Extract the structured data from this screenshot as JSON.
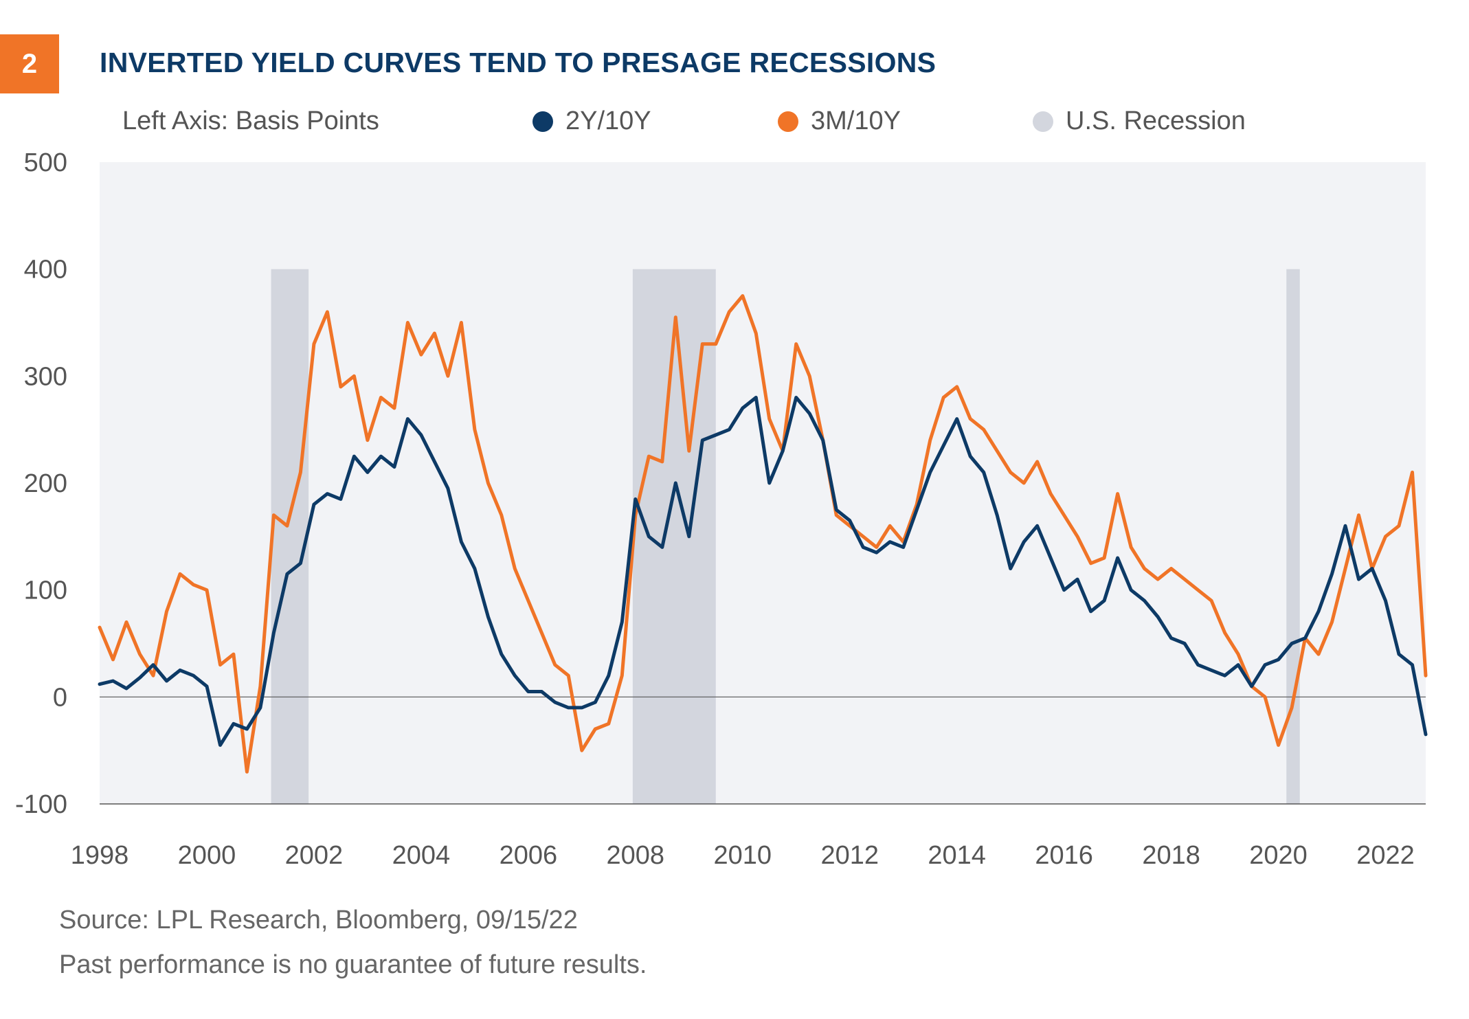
{
  "figure": {
    "number": "2",
    "title": "INVERTED YIELD CURVES TEND TO PRESAGE RECESSIONS",
    "axis_note": "Left Axis: Basis Points",
    "source": "Source: LPL Research, Bloomberg,  09/15/22",
    "disclaimer": "Past performance is no guarantee of future results."
  },
  "colors": {
    "accent": "#f07427",
    "navy": "#0d3a66",
    "orange": "#f07427",
    "recession": "#d3d6de",
    "plot_bg": "#f2f3f6",
    "recession_dot": "#d3d6de"
  },
  "chart_data": {
    "type": "line",
    "ylabel": "Left Axis: Basis Points",
    "ylim": [
      -100,
      500
    ],
    "xlim": [
      1998.0,
      2022.75
    ],
    "y_ticks": [
      500,
      400,
      300,
      200,
      100,
      0,
      -100
    ],
    "y_tick_labels": [
      "500",
      "400",
      "300",
      "200",
      "100",
      "0",
      "-100"
    ],
    "x_ticks": [
      1998,
      2000,
      2002,
      2004,
      2006,
      2008,
      2010,
      2012,
      2014,
      2016,
      2018,
      2020,
      2022
    ],
    "x_tick_labels": [
      "1998",
      "2000",
      "2002",
      "2004",
      "2006",
      "2008",
      "2010",
      "2012",
      "2014",
      "2016",
      "2018",
      "2020",
      "2022"
    ],
    "grid": false,
    "legend_position": "top",
    "legend": [
      {
        "label": "2Y/10Y",
        "color": "#0d3a66"
      },
      {
        "label": "3M/10Y",
        "color": "#f07427"
      },
      {
        "label": "U.S. Recession",
        "color": "#d3d6de"
      }
    ],
    "recessions": [
      {
        "start": 2001.2,
        "end": 2001.9,
        "top": 400
      },
      {
        "start": 2007.95,
        "end": 2009.5,
        "top": 400
      },
      {
        "start": 2020.15,
        "end": 2020.4,
        "top": 400
      }
    ],
    "series": [
      {
        "name": "2Y/10Y",
        "color": "#0d3a66",
        "x": [
          1998.0,
          1998.25,
          1998.5,
          1998.75,
          1999.0,
          1999.25,
          1999.5,
          1999.75,
          2000.0,
          2000.25,
          2000.5,
          2000.75,
          2001.0,
          2001.25,
          2001.5,
          2001.75,
          2002.0,
          2002.25,
          2002.5,
          2002.75,
          2003.0,
          2003.25,
          2003.5,
          2003.75,
          2004.0,
          2004.25,
          2004.5,
          2004.75,
          2005.0,
          2005.25,
          2005.5,
          2005.75,
          2006.0,
          2006.25,
          2006.5,
          2006.75,
          2007.0,
          2007.25,
          2007.5,
          2007.75,
          2008.0,
          2008.25,
          2008.5,
          2008.75,
          2009.0,
          2009.25,
          2009.5,
          2009.75,
          2010.0,
          2010.25,
          2010.5,
          2010.75,
          2011.0,
          2011.25,
          2011.5,
          2011.75,
          2012.0,
          2012.25,
          2012.5,
          2012.75,
          2013.0,
          2013.25,
          2013.5,
          2013.75,
          2014.0,
          2014.25,
          2014.5,
          2014.75,
          2015.0,
          2015.25,
          2015.5,
          2015.75,
          2016.0,
          2016.25,
          2016.5,
          2016.75,
          2017.0,
          2017.25,
          2017.5,
          2017.75,
          2018.0,
          2018.25,
          2018.5,
          2018.75,
          2019.0,
          2019.25,
          2019.5,
          2019.75,
          2020.0,
          2020.25,
          2020.5,
          2020.75,
          2021.0,
          2021.25,
          2021.5,
          2021.75,
          2022.0,
          2022.25,
          2022.5,
          2022.75
        ],
        "values": [
          12,
          15,
          8,
          18,
          30,
          15,
          25,
          20,
          10,
          -45,
          -25,
          -30,
          -10,
          60,
          115,
          125,
          180,
          190,
          185,
          225,
          210,
          225,
          215,
          260,
          245,
          220,
          195,
          145,
          120,
          75,
          40,
          20,
          5,
          5,
          -5,
          -10,
          -10,
          -5,
          20,
          70,
          185,
          150,
          140,
          200,
          150,
          240,
          245,
          250,
          270,
          280,
          200,
          230,
          280,
          265,
          240,
          175,
          165,
          140,
          135,
          145,
          140,
          175,
          210,
          235,
          260,
          225,
          210,
          170,
          120,
          145,
          160,
          130,
          100,
          110,
          80,
          90,
          130,
          100,
          90,
          75,
          55,
          50,
          30,
          25,
          20,
          30,
          10,
          30,
          35,
          50,
          55,
          80,
          115,
          160,
          110,
          120,
          90,
          40,
          30,
          -35
        ]
      },
      {
        "name": "3M/10Y",
        "color": "#f07427",
        "x": [
          1998.0,
          1998.25,
          1998.5,
          1998.75,
          1999.0,
          1999.25,
          1999.5,
          1999.75,
          2000.0,
          2000.25,
          2000.5,
          2000.75,
          2001.0,
          2001.25,
          2001.5,
          2001.75,
          2002.0,
          2002.25,
          2002.5,
          2002.75,
          2003.0,
          2003.25,
          2003.5,
          2003.75,
          2004.0,
          2004.25,
          2004.5,
          2004.75,
          2005.0,
          2005.25,
          2005.5,
          2005.75,
          2006.0,
          2006.25,
          2006.5,
          2006.75,
          2007.0,
          2007.25,
          2007.5,
          2007.75,
          2008.0,
          2008.25,
          2008.5,
          2008.75,
          2009.0,
          2009.25,
          2009.5,
          2009.75,
          2010.0,
          2010.25,
          2010.5,
          2010.75,
          2011.0,
          2011.25,
          2011.5,
          2011.75,
          2012.0,
          2012.25,
          2012.5,
          2012.75,
          2013.0,
          2013.25,
          2013.5,
          2013.75,
          2014.0,
          2014.25,
          2014.5,
          2014.75,
          2015.0,
          2015.25,
          2015.5,
          2015.75,
          2016.0,
          2016.25,
          2016.5,
          2016.75,
          2017.0,
          2017.25,
          2017.5,
          2017.75,
          2018.0,
          2018.25,
          2018.5,
          2018.75,
          2019.0,
          2019.25,
          2019.5,
          2019.75,
          2020.0,
          2020.25,
          2020.5,
          2020.75,
          2021.0,
          2021.25,
          2021.5,
          2021.75,
          2022.0,
          2022.25,
          2022.5,
          2022.75
        ],
        "values": [
          65,
          35,
          70,
          40,
          20,
          80,
          115,
          105,
          100,
          30,
          40,
          -70,
          10,
          170,
          160,
          210,
          330,
          360,
          290,
          300,
          240,
          280,
          270,
          350,
          320,
          340,
          300,
          350,
          250,
          200,
          170,
          120,
          90,
          60,
          30,
          20,
          -50,
          -30,
          -25,
          20,
          170,
          225,
          220,
          355,
          230,
          330,
          330,
          360,
          375,
          340,
          260,
          230,
          330,
          300,
          240,
          170,
          160,
          150,
          140,
          160,
          145,
          180,
          240,
          280,
          290,
          260,
          250,
          230,
          210,
          200,
          220,
          190,
          170,
          150,
          125,
          130,
          190,
          140,
          120,
          110,
          120,
          110,
          100,
          90,
          60,
          40,
          10,
          0,
          -45,
          -10,
          55,
          40,
          70,
          120,
          170,
          120,
          150,
          160,
          210,
          20
        ]
      }
    ]
  }
}
